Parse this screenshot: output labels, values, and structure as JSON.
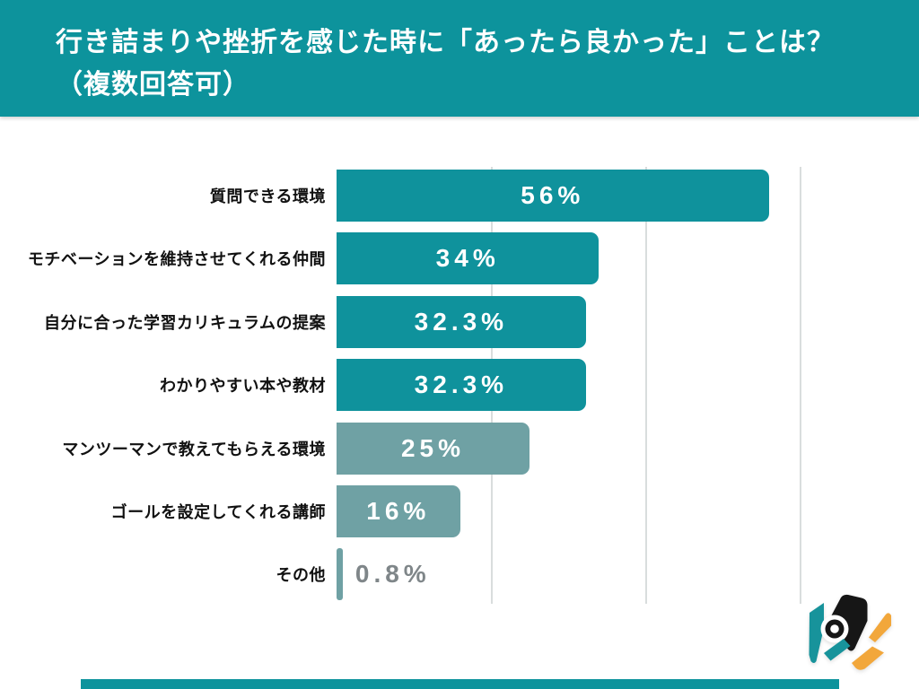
{
  "header": {
    "title_line1": "行き詰まりや挫折を感じた時に「あったら良かった」ことは？",
    "title_line2": "（複数回答可）"
  },
  "chart_data": {
    "type": "bar",
    "orientation": "horizontal",
    "title": "行き詰まりや挫折を感じた時に「あったら良かった」ことは？（複数回答可）",
    "categories": [
      "質問できる環境",
      "モチベーションを維持させてくれる仲間",
      "自分に合った学習カリキュラムの提案",
      "わかりやすい本や教材",
      "マンツーマンで教えてもらえる環境",
      "ゴールを設定してくれる講師",
      "その他"
    ],
    "values": [
      56,
      34,
      32.3,
      32.3,
      25,
      16,
      0.8
    ],
    "value_labels": [
      "56%",
      "34%",
      "32.3%",
      "32.3%",
      "25%",
      "16%",
      "0.8%"
    ],
    "series_colors": [
      "#0F929C",
      "#0F929C",
      "#0F929C",
      "#0F929C",
      "#6FA1A4",
      "#6FA1A4",
      "#6FA1A4"
    ],
    "xlim": [
      0,
      65
    ],
    "gridline_values": [
      20,
      40,
      60
    ],
    "grid": true,
    "legend": false,
    "value_label_position": "inside-center, outside-right when bar too small"
  },
  "colors": {
    "background": "#FFFFFF",
    "header_bg": "#0D939C",
    "bar_teal": "#0F929C",
    "bar_sage": "#6FA1A4",
    "value_text_inside": "#FFFFFF",
    "value_text_outside": "#7F8689",
    "category_text": "#111111",
    "gridline": "#D9DDDD",
    "footer_bar": "#0D939C",
    "logo_black": "#161616",
    "logo_teal": "#17939B",
    "logo_orange": "#F2A73B"
  },
  "logo": {
    "name": "hexagon-aperture-logo"
  }
}
